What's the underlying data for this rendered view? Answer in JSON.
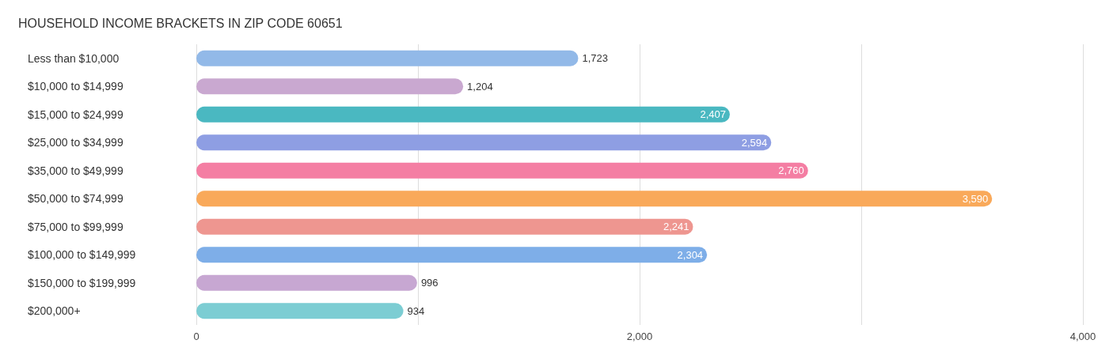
{
  "chart_data": {
    "type": "bar",
    "orientation": "horizontal",
    "title": "HOUSEHOLD INCOME BRACKETS IN ZIP CODE 60651",
    "categories": [
      "Less than $10,000",
      "$10,000 to $14,999",
      "$15,000 to $24,999",
      "$25,000 to $34,999",
      "$35,000 to $49,999",
      "$50,000 to $74,999",
      "$75,000 to $99,999",
      "$100,000 to $149,999",
      "$150,000 to $199,999",
      "$200,000+"
    ],
    "values": [
      1723,
      1204,
      2407,
      2594,
      2760,
      3590,
      2241,
      2304,
      996,
      934
    ],
    "colors": [
      "#92b9e8",
      "#c9a8d0",
      "#4ab8c1",
      "#8e9ee3",
      "#f47ea3",
      "#f9a95a",
      "#ee9690",
      "#7eaee8",
      "#c7a7d2",
      "#7ccdd3"
    ],
    "value_labels": [
      "1,723",
      "1,204",
      "2,407",
      "2,594",
      "2,760",
      "3,590",
      "2,241",
      "2,304",
      "996",
      "934"
    ],
    "xlim": [
      0,
      4000
    ],
    "xticks": [
      0,
      {
        "value": 2000,
        "label": "2,000"
      },
      {
        "value": 4000,
        "label": "4,000"
      }
    ],
    "grid": "x"
  }
}
